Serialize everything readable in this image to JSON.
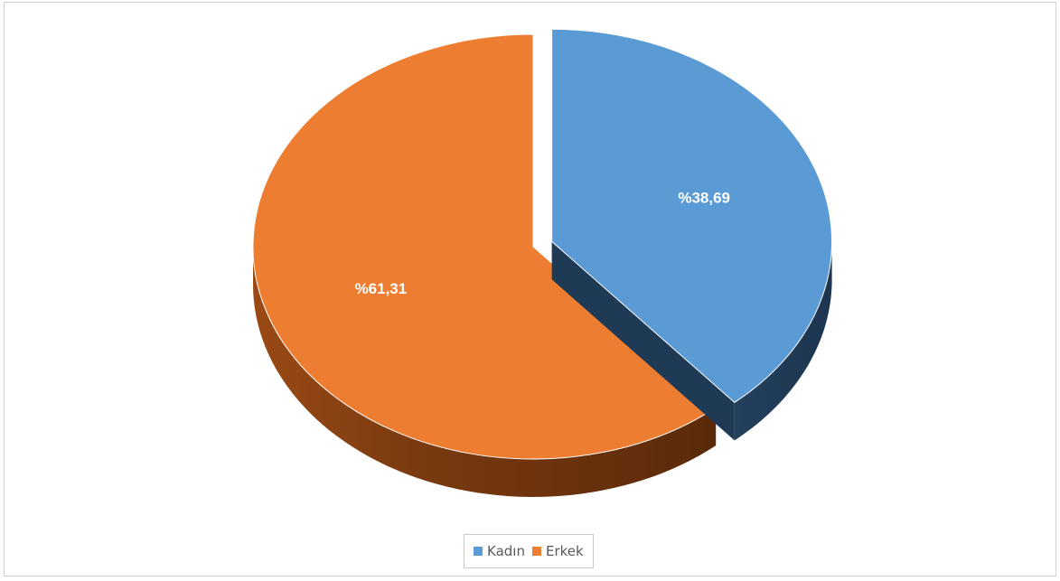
{
  "chart_data": {
    "type": "pie",
    "categories": [
      "Kadın",
      "Erkek"
    ],
    "values": [
      38.69,
      61.31
    ],
    "data_labels": [
      "%38,69",
      "%61,31"
    ],
    "colors": [
      "#5b9bd5",
      "#ed7d31"
    ],
    "exploded_slice": "Kadın",
    "legend_position": "bottom",
    "title": ""
  },
  "legend": {
    "items": [
      {
        "label": "Kadın",
        "color": "#5b9bd5"
      },
      {
        "label": "Erkek",
        "color": "#ed7d31"
      }
    ]
  }
}
